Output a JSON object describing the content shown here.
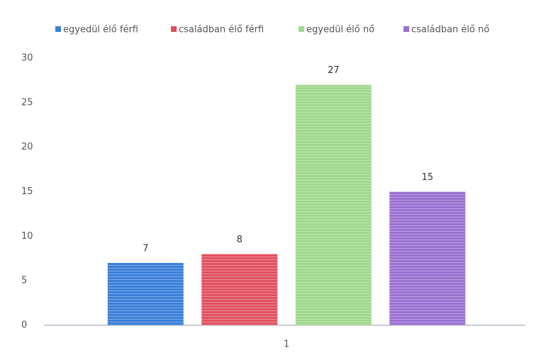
{
  "chart_data": {
    "type": "bar",
    "categories": [
      "1"
    ],
    "series": [
      {
        "name": "egyedül élő férfi",
        "color": "#3a7fd9",
        "values": [
          7
        ]
      },
      {
        "name": "családban élő férfi",
        "color": "#e0515f",
        "values": [
          8
        ]
      },
      {
        "name": "egyedül élő nő",
        "color": "#9fd98c",
        "values": [
          27
        ]
      },
      {
        "name": "családban élő nő",
        "color": "#9a70d1",
        "values": [
          15
        ]
      }
    ],
    "ylim": [
      0,
      30
    ],
    "yticks": [
      0,
      5,
      10,
      15,
      20,
      25,
      30
    ],
    "grid": false,
    "legend": "top"
  }
}
